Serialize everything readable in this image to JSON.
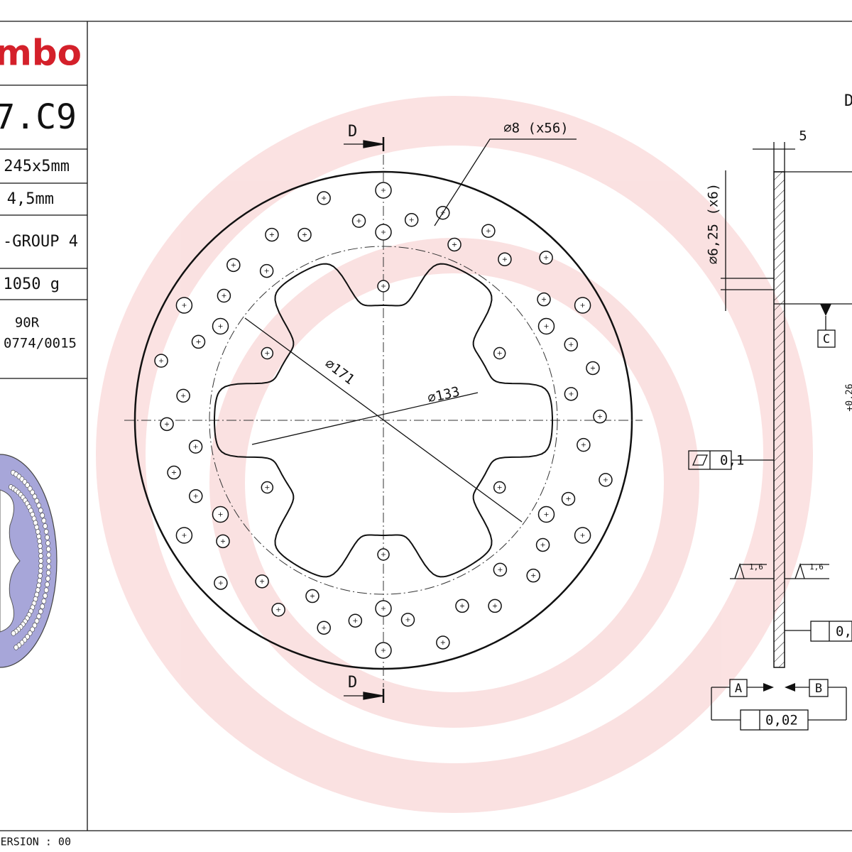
{
  "title_block": {
    "logo": "mbo",
    "code": "7.C9",
    "size": "245x5mm",
    "min_thickness": "4,5mm",
    "group": "-GROUP 4",
    "weight": "1050 g",
    "approval": "90R",
    "approval_number": "0774/0015",
    "version": "ERSION : 00"
  },
  "front_view": {
    "section_top": "D",
    "section_bottom": "D",
    "hole_callout": "⌀8 (x56)",
    "dia_holes": "⌀171",
    "dia_center": "⌀133"
  },
  "side_view": {
    "section_label": "D",
    "thickness": "5",
    "mount_holes": "⌀6,25 (x6)",
    "datum_c": "C",
    "flatness": "0,1",
    "roughness": [
      "1,6",
      "1,6"
    ],
    "runout": "0,",
    "datum_a": "A",
    "datum_b": "B",
    "parallelism": "0,02",
    "tolerance": "+0,26"
  }
}
